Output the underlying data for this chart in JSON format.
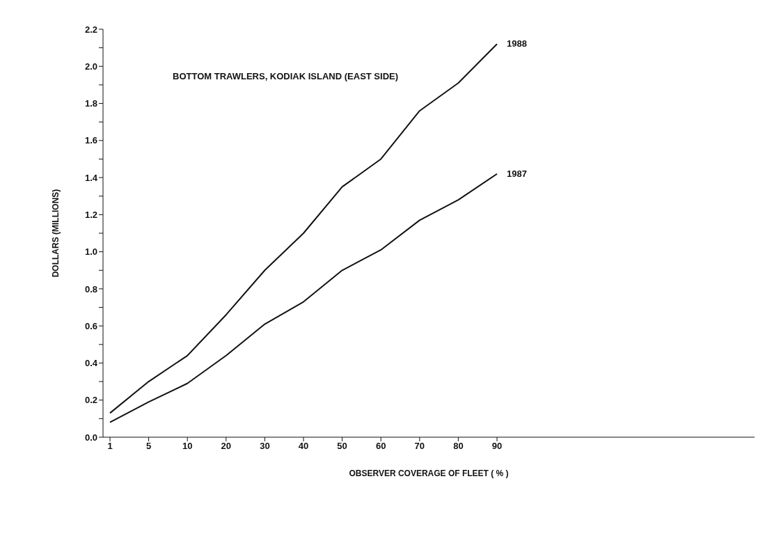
{
  "chart_data": {
    "type": "line",
    "xlabel": "OBSERVER COVERAGE OF FLEET ( % )",
    "ylabel": "DOLLARS (MILLIONS)",
    "annotations": [
      "BOTTOM TRAWLERS, KODIAK ISLAND (EAST SIDE)"
    ],
    "categories": [
      "1",
      "5",
      "10",
      "20",
      "30",
      "40",
      "50",
      "60",
      "70",
      "80",
      "90"
    ],
    "series": [
      {
        "name": "1988",
        "color": "#111111",
        "values": [
          0.13,
          0.3,
          0.44,
          0.66,
          0.9,
          1.1,
          1.35,
          1.5,
          1.76,
          1.91,
          2.12
        ]
      },
      {
        "name": "1987",
        "color": "#111111",
        "values": [
          0.08,
          0.19,
          0.29,
          0.44,
          0.61,
          0.73,
          0.9,
          1.01,
          1.17,
          1.28,
          1.42
        ]
      }
    ],
    "ylim": [
      0,
      2.2
    ],
    "yticks": [
      {
        "value": 0,
        "label": "0.0"
      },
      {
        "value": 0.1,
        "label": null
      },
      {
        "value": 0.2,
        "label": "0.2"
      },
      {
        "value": 0.3,
        "label": null
      },
      {
        "value": 0.4,
        "label": "0.4"
      },
      {
        "value": 0.5,
        "label": null
      },
      {
        "value": 0.6,
        "label": "0.6"
      },
      {
        "value": 0.7,
        "label": null
      },
      {
        "value": 0.8,
        "label": "0.8"
      },
      {
        "value": 0.9,
        "label": null
      },
      {
        "value": 1.0,
        "label": "1.0"
      },
      {
        "value": 1.1,
        "label": null
      },
      {
        "value": 1.2,
        "label": "1.2"
      },
      {
        "value": 1.3,
        "label": null
      },
      {
        "value": 1.4,
        "label": "1.4"
      },
      {
        "value": 1.5,
        "label": null
      },
      {
        "value": 1.6,
        "label": "1.6"
      },
      {
        "value": 1.7,
        "label": null
      },
      {
        "value": 1.8,
        "label": "1.8"
      },
      {
        "value": 1.9,
        "label": null
      },
      {
        "value": 2.0,
        "label": "2.0"
      },
      {
        "value": 2.1,
        "label": null
      },
      {
        "value": 2.2,
        "label": "2.2"
      }
    ],
    "grid": false,
    "legend": false,
    "marker": "none",
    "line_style": "solid"
  }
}
